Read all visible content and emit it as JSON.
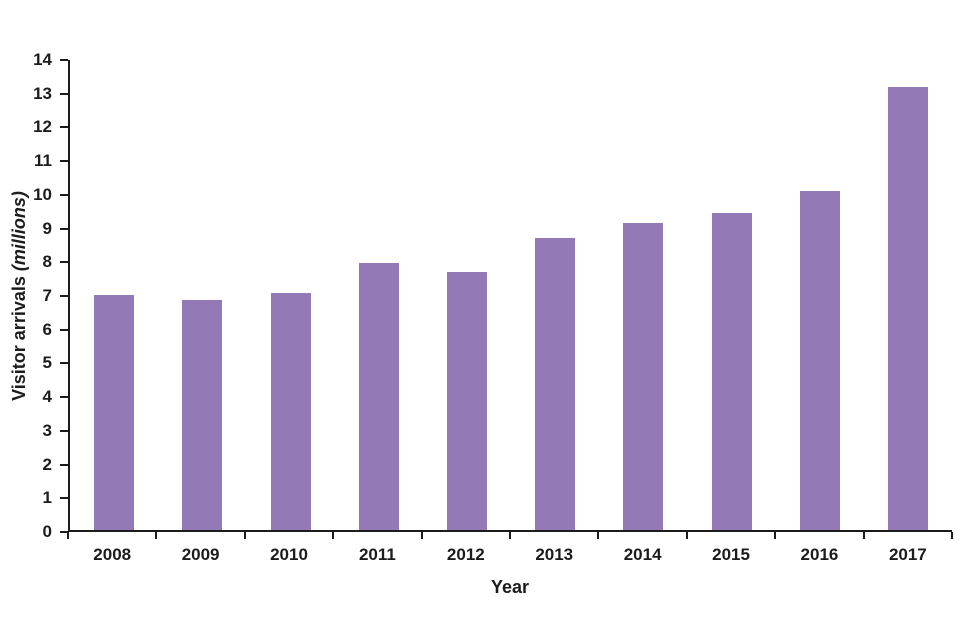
{
  "chart_data": {
    "type": "bar",
    "title": "",
    "categories": [
      "2008",
      "2009",
      "2010",
      "2011",
      "2012",
      "2013",
      "2014",
      "2015",
      "2016",
      "2017"
    ],
    "values": [
      7.0,
      6.85,
      7.05,
      7.95,
      7.7,
      8.7,
      9.15,
      9.45,
      10.1,
      13.2
    ],
    "xlabel": "Year",
    "ylabel_text": "Visitor arrivals",
    "ylabel_unit": "(millions)",
    "ylim": [
      0,
      14
    ],
    "yticks": [
      "0",
      "1",
      "2",
      "3",
      "4",
      "5",
      "6",
      "7",
      "8",
      "9",
      "10",
      "11",
      "12",
      "13",
      "14"
    ],
    "grid": false,
    "legend": "none",
    "bar_color": "#9379b5",
    "axis_color": "#1c1c1c",
    "background_color": "#ffffff"
  }
}
